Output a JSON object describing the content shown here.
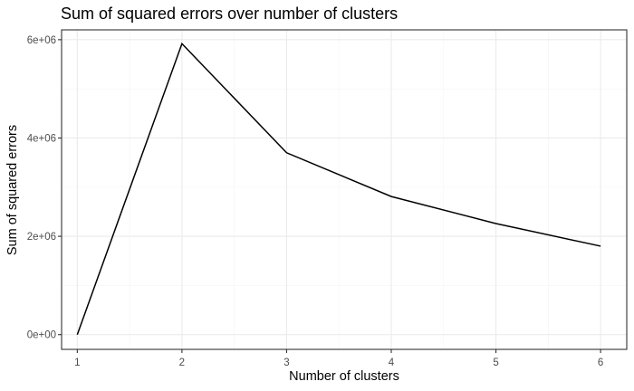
{
  "chart_data": {
    "type": "line",
    "title": "Sum of squared errors over number of clusters",
    "xlabel": "Number of clusters",
    "ylabel": "Sum of squared errors",
    "x": [
      1,
      2,
      3,
      4,
      5,
      6
    ],
    "series": [
      {
        "values": [
          0,
          5920000,
          3700000,
          2810000,
          2260000,
          1800000
        ]
      }
    ],
    "xlim": [
      0.85,
      6.25
    ],
    "ylim": [
      -300000,
      6200000
    ],
    "xticks": [
      1,
      2,
      3,
      4,
      5,
      6
    ],
    "xtick_labels": [
      "1",
      "2",
      "3",
      "4",
      "5",
      "6"
    ],
    "yticks": [
      0,
      2000000,
      4000000,
      6000000
    ],
    "ytick_labels": [
      "0e+00",
      "2e+06",
      "4e+06",
      "6e+06"
    ],
    "grid": true,
    "line_color": "#000000"
  }
}
